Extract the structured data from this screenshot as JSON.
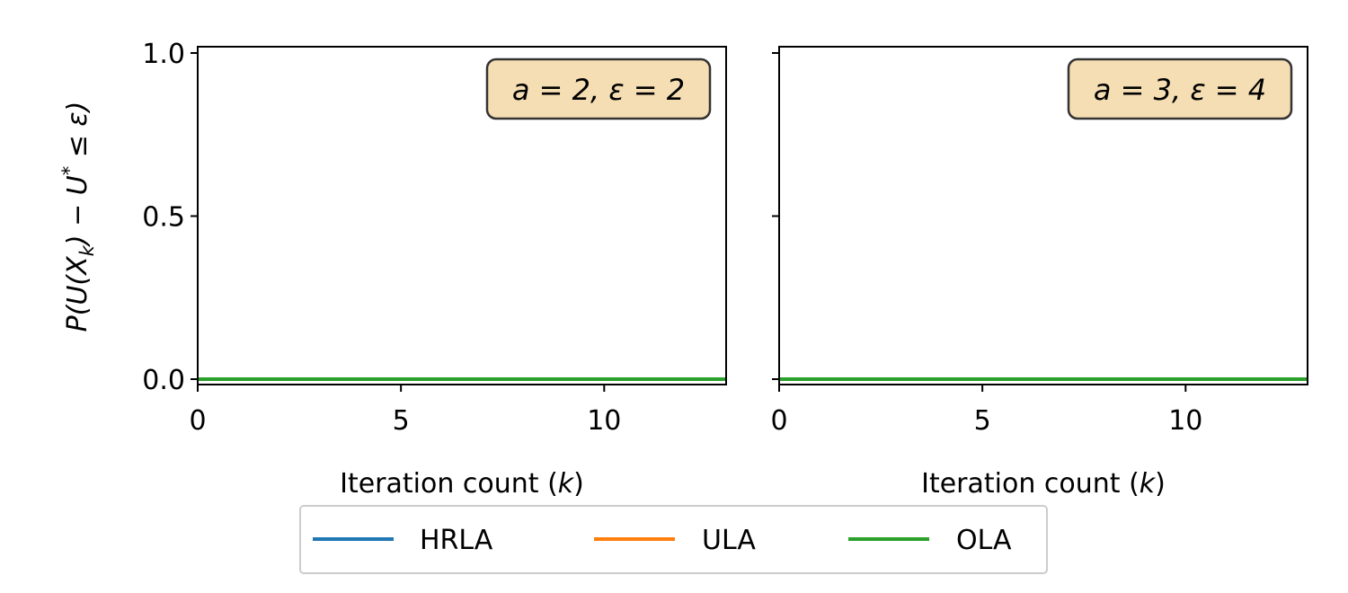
{
  "chart_data": [
    {
      "type": "line",
      "annotation": {
        "a": "2",
        "epsilon": "2"
      },
      "xlabel_text": "Iteration count (",
      "xlabel_var": "k",
      "xlabel_close": ")",
      "ylabel": "P(U(X_k) − U* ≤ ε)",
      "xlim": [
        0,
        13
      ],
      "ylim": [
        0.0,
        1.0
      ],
      "xticks": [
        0,
        5,
        10
      ],
      "yticks": [
        0.0,
        0.5,
        1.0
      ],
      "ytick_labels": [
        "0.0",
        "0.5",
        "1.0"
      ],
      "x": [
        0,
        13
      ],
      "series": [
        {
          "name": "HRLA",
          "values": [
            0,
            0
          ]
        },
        {
          "name": "ULA",
          "values": [
            0,
            0
          ]
        },
        {
          "name": "OLA",
          "values": [
            0,
            0
          ]
        }
      ]
    },
    {
      "type": "line",
      "annotation": {
        "a": "3",
        "epsilon": "4"
      },
      "xlabel_text": "Iteration count (",
      "xlabel_var": "k",
      "xlabel_close": ")",
      "xlim": [
        0,
        13
      ],
      "ylim": [
        0.0,
        1.0
      ],
      "xticks": [
        0,
        5,
        10
      ],
      "yticks": [
        0.0,
        0.5,
        1.0
      ],
      "x": [
        0,
        13
      ],
      "series": [
        {
          "name": "HRLA",
          "values": [
            0,
            0
          ]
        },
        {
          "name": "ULA",
          "values": [
            0,
            0
          ]
        },
        {
          "name": "OLA",
          "values": [
            0,
            0
          ]
        }
      ]
    }
  ],
  "legend": {
    "position": "bottom-center",
    "items": [
      {
        "label": "HRLA",
        "color": "#1f77b4"
      },
      {
        "label": "ULA",
        "color": "#ff7f0e"
      },
      {
        "label": "OLA",
        "color": "#2ca02c"
      }
    ]
  },
  "colors": {
    "annotation_fill": "#f5deb3",
    "annotation_stroke": "#333333"
  }
}
